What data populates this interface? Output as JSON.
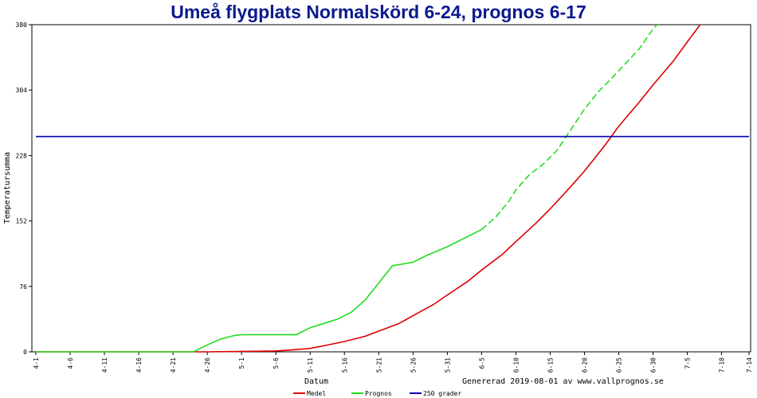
{
  "chart_data": {
    "type": "line",
    "title": "Umeå flygplats Normalskörd 6-24, prognos 6-17",
    "xlabel": "Datum",
    "ylabel": "Temperatursumma",
    "footer": "Genererad 2019-08-01 av www.vallprognos.se",
    "ylim": [
      0,
      380
    ],
    "yticks": [
      0,
      76,
      152,
      228,
      304,
      380
    ],
    "x_start": "4-1",
    "x_end": "7-14",
    "xticks": [
      "4-1",
      "4-6",
      "4-11",
      "4-16",
      "4-21",
      "4-26",
      "5-1",
      "5-6",
      "5-11",
      "5-16",
      "5-21",
      "5-26",
      "5-31",
      "6-5",
      "6-10",
      "6-15",
      "6-20",
      "6-25",
      "6-30",
      "7-5",
      "7-10",
      "7-14"
    ],
    "grid": false,
    "legend_position": "bottom",
    "series": [
      {
        "name": "Medel",
        "color": "#dd0000",
        "style": "solid",
        "points": [
          [
            "4-1",
            0
          ],
          [
            "4-26",
            0
          ],
          [
            "5-6",
            1
          ],
          [
            "5-8",
            2
          ],
          [
            "5-11",
            4
          ],
          [
            "5-13",
            7
          ],
          [
            "5-16",
            12
          ],
          [
            "5-19",
            18
          ],
          [
            "5-21",
            24
          ],
          [
            "5-24",
            33
          ],
          [
            "5-26",
            42
          ],
          [
            "5-29",
            55
          ],
          [
            "5-31",
            66
          ],
          [
            "6-3",
            82
          ],
          [
            "6-5",
            95
          ],
          [
            "6-8",
            113
          ],
          [
            "6-10",
            128
          ],
          [
            "6-13",
            150
          ],
          [
            "6-15",
            166
          ],
          [
            "6-18",
            192
          ],
          [
            "6-20",
            210
          ],
          [
            "6-23",
            240
          ],
          [
            "6-25",
            262
          ],
          [
            "6-28",
            290
          ],
          [
            "6-30",
            310
          ],
          [
            "7-3",
            338
          ],
          [
            "7-5",
            360
          ],
          [
            "7-8",
            392
          ]
        ]
      },
      {
        "name": "Prognos",
        "color": "#22dd22",
        "style": "solid-then-dashed",
        "dash_from": "6-5",
        "points": [
          [
            "4-1",
            0
          ],
          [
            "4-24",
            0
          ],
          [
            "4-26",
            8
          ],
          [
            "4-28",
            15
          ],
          [
            "4-30",
            19
          ],
          [
            "5-1",
            20
          ],
          [
            "5-3",
            20
          ],
          [
            "5-6",
            20
          ],
          [
            "5-8",
            20
          ],
          [
            "5-9",
            20
          ],
          [
            "5-11",
            28
          ],
          [
            "5-13",
            33
          ],
          [
            "5-15",
            38
          ],
          [
            "5-17",
            46
          ],
          [
            "5-19",
            60
          ],
          [
            "5-21",
            80
          ],
          [
            "5-23",
            100
          ],
          [
            "5-26",
            104
          ],
          [
            "5-28",
            112
          ],
          [
            "5-31",
            122
          ],
          [
            "6-2",
            130
          ],
          [
            "6-4",
            138
          ],
          [
            "6-5",
            142
          ],
          [
            "6-7",
            156
          ],
          [
            "6-9",
            175
          ],
          [
            "6-10",
            188
          ],
          [
            "6-12",
            206
          ],
          [
            "6-14",
            218
          ],
          [
            "6-16",
            234
          ],
          [
            "6-18",
            258
          ],
          [
            "6-20",
            282
          ],
          [
            "6-22",
            302
          ],
          [
            "6-24",
            318
          ],
          [
            "6-26",
            335
          ],
          [
            "6-28",
            352
          ],
          [
            "6-30",
            375
          ],
          [
            "7-2",
            392
          ],
          [
            "7-4",
            410
          ]
        ]
      },
      {
        "name": "250 grader",
        "color": "#0000aa",
        "style": "solid",
        "points": [
          [
            "4-1",
            250
          ],
          [
            "7-14",
            250
          ]
        ]
      }
    ]
  }
}
